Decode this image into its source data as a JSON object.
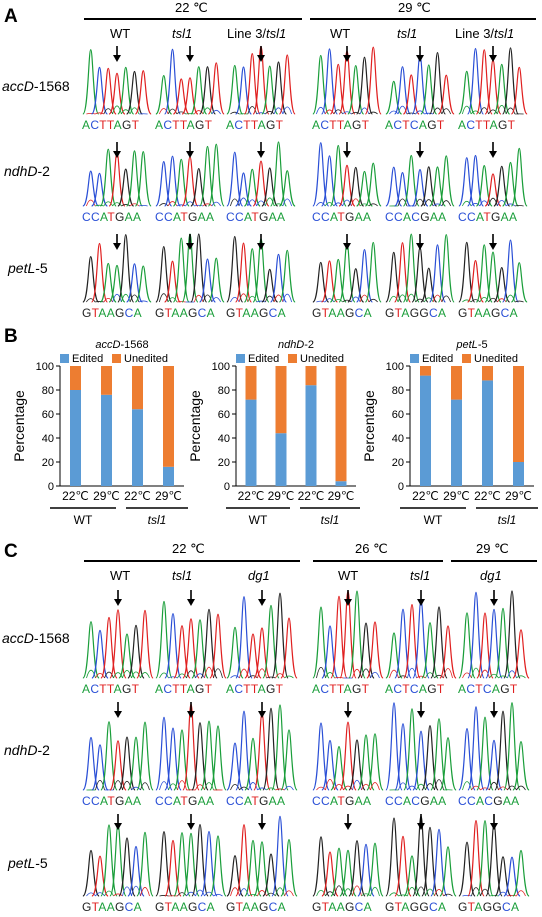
{
  "panels": {
    "a": "A",
    "b": "B",
    "c": "C"
  },
  "panelA": {
    "temps": [
      "22 ℃",
      "29 ℃"
    ],
    "genotypes": [
      "WT",
      "tsl1",
      "Line 3/tsl1",
      "WT",
      "tsl1",
      "Line 3/tsl1"
    ],
    "genes": [
      {
        "name": "accD",
        "pos": "-1568"
      },
      {
        "name": "ndhD",
        "pos": "-2"
      },
      {
        "name": "petL",
        "pos": "-5"
      }
    ],
    "sequences": [
      [
        "ACTTAGT",
        "ACTTAGT",
        "ACTTAGT",
        "ACTTAGT",
        "ACTCAGT",
        "ACTTAGT"
      ],
      [
        "CCATGAA",
        "CCATGAA",
        "CCATGAA",
        "CCATGAA",
        "CCACGAA",
        "CCATGAA"
      ],
      [
        "GTAAGCA",
        "GTAAGCA",
        "GTAAGCA",
        "GTAAGCA",
        "GTAGGCA",
        "GTAAGCA"
      ]
    ]
  },
  "panelB": {
    "chart_data": [
      {
        "type": "bar",
        "title": "accD-1568",
        "ylabel": "Percentage",
        "ylim": [
          0,
          100
        ],
        "yticks": [
          "0",
          "20",
          "40",
          "60",
          "80",
          "100"
        ],
        "categories": [
          "22℃",
          "29℃",
          "22℃",
          "29℃"
        ],
        "groups": [
          "WT",
          "tsl1"
        ],
        "series": [
          {
            "name": "Edited",
            "values": [
              80,
              76,
              64,
              16
            ]
          },
          {
            "name": "Unedited",
            "values": [
              20,
              24,
              36,
              84
            ]
          }
        ]
      },
      {
        "type": "bar",
        "title": "ndhD-2",
        "ylabel": "Percentage",
        "ylim": [
          0,
          100
        ],
        "yticks": [
          "0",
          "20",
          "40",
          "60",
          "80",
          "100"
        ],
        "categories": [
          "22℃",
          "29℃",
          "22℃",
          "29℃"
        ],
        "groups": [
          "WT",
          "tsl1"
        ],
        "series": [
          {
            "name": "Edited",
            "values": [
              72,
              44,
              84,
              4
            ]
          },
          {
            "name": "Unedited",
            "values": [
              28,
              56,
              16,
              96
            ]
          }
        ]
      },
      {
        "type": "bar",
        "title": "petL-5",
        "ylabel": "Percentage",
        "ylim": [
          0,
          100
        ],
        "yticks": [
          "0",
          "20",
          "40",
          "60",
          "80",
          "100"
        ],
        "categories": [
          "22℃",
          "29℃",
          "22℃",
          "29℃"
        ],
        "groups": [
          "WT",
          "tsl1"
        ],
        "series": [
          {
            "name": "Edited",
            "values": [
              92,
              72,
              88,
              20
            ]
          },
          {
            "name": "Unedited",
            "values": [
              8,
              28,
              12,
              80
            ]
          }
        ]
      }
    ],
    "colors": {
      "edited": "#5b9bd5",
      "unedited": "#ed7d31"
    }
  },
  "panelC": {
    "temps": [
      "22 ℃",
      "26 ℃",
      "29 ℃"
    ],
    "genotypes": [
      "WT",
      "tsl1",
      "dg1",
      "WT",
      "tsl1",
      "dg1"
    ],
    "genes": [
      {
        "name": "accD",
        "pos": "-1568"
      },
      {
        "name": "ndhD",
        "pos": "-2"
      },
      {
        "name": "petL",
        "pos": "-5"
      }
    ],
    "sequences": [
      [
        "ACTTAGT",
        "ACTTAGT",
        "ACTTAGT",
        "ACTTAGT",
        "ACTCAGT",
        "ACTCAGT"
      ],
      [
        "CCATGAA",
        "CCATGAA",
        "CCATGAA",
        "CCATGAA",
        "CCACGAA",
        "CCACGAA"
      ],
      [
        "GTAAGCA",
        "GTAAGCA",
        "GTAAGCA",
        "GTAAGCA",
        "GTAGGCA",
        "GTAGGCA"
      ]
    ]
  },
  "baseColors": {
    "A": "#1a9e3a",
    "C": "#2a4fd6",
    "G": "#222222",
    "T": "#e02020"
  }
}
